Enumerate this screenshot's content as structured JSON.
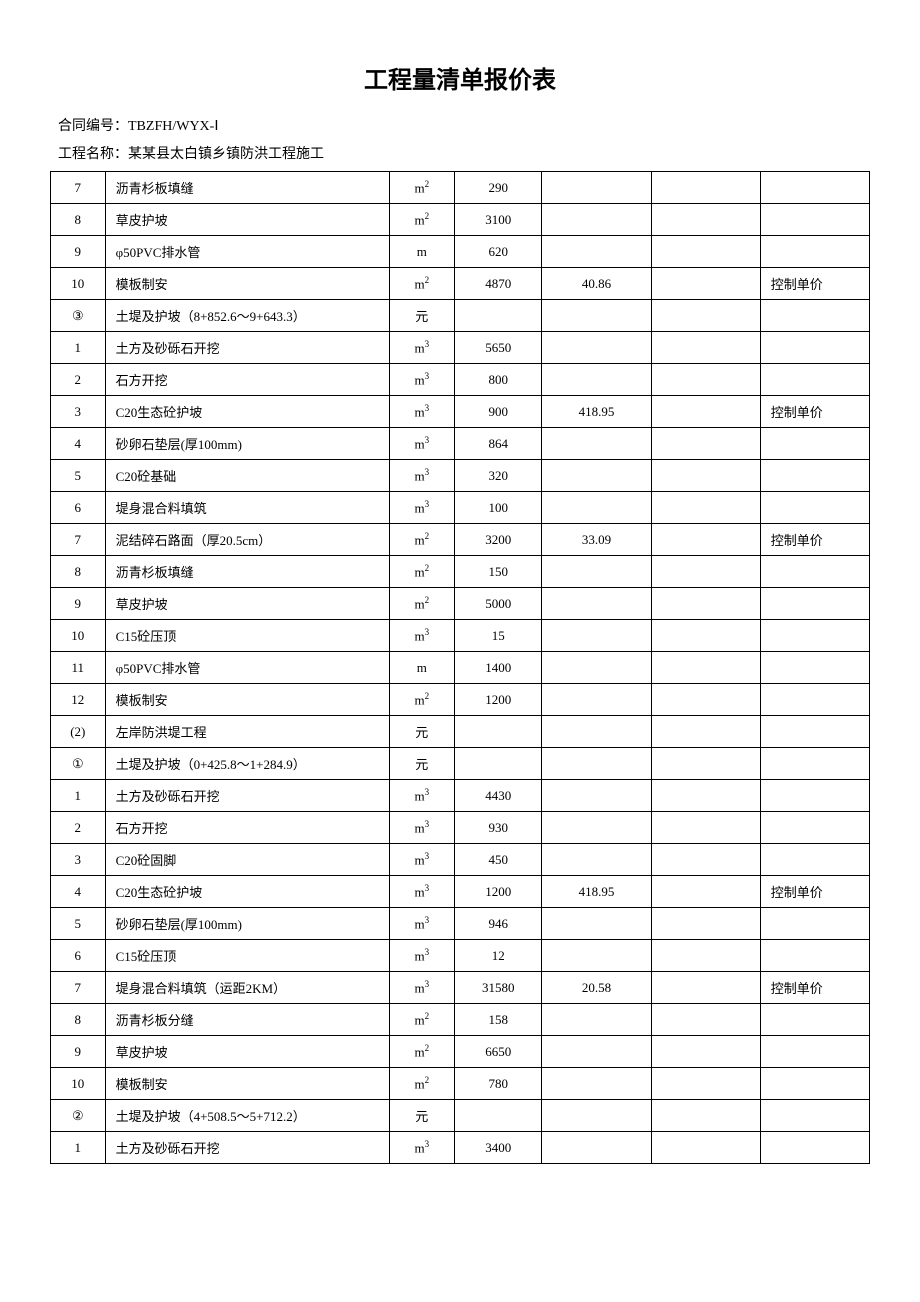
{
  "title": "工程量清单报价表",
  "contract_label": "合同编号：",
  "contract_no": "TBZFH/WYX-Ⅰ",
  "project_label": "工程名称：",
  "project_name": "某某县太白镇乡镇防洪工程施工",
  "note_text": "控制单价",
  "units": {
    "m2": "m²",
    "m3": "m³",
    "m": "m",
    "yuan": "元"
  },
  "rows": [
    {
      "idx": "7",
      "name": "沥青杉板填缝",
      "unit": "m2",
      "qty": "290",
      "price": "",
      "note": ""
    },
    {
      "idx": "8",
      "name": "草皮护坡",
      "unit": "m2",
      "qty": "3100",
      "price": "",
      "note": ""
    },
    {
      "idx": "9",
      "name": "φ50PVC排水管",
      "unit": "m",
      "qty": "620",
      "price": "",
      "note": ""
    },
    {
      "idx": "10",
      "name": "模板制安",
      "unit": "m2",
      "qty": "4870",
      "price": "40.86",
      "note": "控制单价"
    },
    {
      "idx": "③",
      "name": "土堤及护坡（8+852.6～9+643.3）",
      "unit": "yuan",
      "qty": "",
      "price": "",
      "note": ""
    },
    {
      "idx": "1",
      "name": "土方及砂砾石开挖",
      "unit": "m3",
      "qty": "5650",
      "price": "",
      "note": ""
    },
    {
      "idx": "2",
      "name": "石方开挖",
      "unit": "m3",
      "qty": "800",
      "price": "",
      "note": ""
    },
    {
      "idx": "3",
      "name": "C20生态砼护坡",
      "unit": "m3",
      "qty": "900",
      "price": "418.95",
      "note": "控制单价"
    },
    {
      "idx": "4",
      "name": "砂卵石垫层(厚100mm)",
      "unit": "m3",
      "qty": "864",
      "price": "",
      "note": ""
    },
    {
      "idx": "5",
      "name": "C20砼基础",
      "unit": "m3",
      "qty": "320",
      "price": "",
      "note": ""
    },
    {
      "idx": "6",
      "name": "堤身混合料填筑",
      "unit": "m3",
      "qty": "100",
      "price": "",
      "note": ""
    },
    {
      "idx": "7",
      "name": "泥结碎石路面（厚20.5cm）",
      "unit": "m2",
      "qty": "3200",
      "price": "33.09",
      "note": "控制单价"
    },
    {
      "idx": "8",
      "name": "沥青杉板填缝",
      "unit": "m2",
      "qty": "150",
      "price": "",
      "note": ""
    },
    {
      "idx": "9",
      "name": "草皮护坡",
      "unit": "m2",
      "qty": "5000",
      "price": "",
      "note": ""
    },
    {
      "idx": "10",
      "name": "C15砼压顶",
      "unit": "m3",
      "qty": "15",
      "price": "",
      "note": ""
    },
    {
      "idx": "11",
      "name": "φ50PVC排水管",
      "unit": "m",
      "qty": "1400",
      "price": "",
      "note": ""
    },
    {
      "idx": "12",
      "name": "模板制安",
      "unit": "m2",
      "qty": "1200",
      "price": "",
      "note": ""
    },
    {
      "idx": "(2)",
      "name": "左岸防洪堤工程",
      "unit": "yuan",
      "qty": "",
      "price": "",
      "note": ""
    },
    {
      "idx": "①",
      "name": "土堤及护坡（0+425.8～1+284.9）",
      "unit": "yuan",
      "qty": "",
      "price": "",
      "note": ""
    },
    {
      "idx": "1",
      "name": "土方及砂砾石开挖",
      "unit": "m3",
      "qty": "4430",
      "price": "",
      "note": ""
    },
    {
      "idx": "2",
      "name": "石方开挖",
      "unit": "m3",
      "qty": "930",
      "price": "",
      "note": ""
    },
    {
      "idx": "3",
      "name": "C20砼固脚",
      "unit": "m3",
      "qty": "450",
      "price": "",
      "note": ""
    },
    {
      "idx": "4",
      "name": "C20生态砼护坡",
      "unit": "m3",
      "qty": "1200",
      "price": "418.95",
      "note": "控制单价"
    },
    {
      "idx": "5",
      "name": "砂卵石垫层(厚100mm)",
      "unit": "m3",
      "qty": "946",
      "price": "",
      "note": ""
    },
    {
      "idx": "6",
      "name": "C15砼压顶",
      "unit": "m3",
      "qty": "12",
      "price": "",
      "note": ""
    },
    {
      "idx": "7",
      "name": "堤身混合料填筑（运距2KM）",
      "unit": "m3",
      "qty": "31580",
      "price": "20.58",
      "note": "控制单价"
    },
    {
      "idx": "8",
      "name": "沥青杉板分缝",
      "unit": "m2",
      "qty": "158",
      "price": "",
      "note": ""
    },
    {
      "idx": "9",
      "name": "草皮护坡",
      "unit": "m2",
      "qty": "6650",
      "price": "",
      "note": ""
    },
    {
      "idx": "10",
      "name": "模板制安",
      "unit": "m2",
      "qty": "780",
      "price": "",
      "note": ""
    },
    {
      "idx": "②",
      "name": "土堤及护坡（4+508.5～5+712.2）",
      "unit": "yuan",
      "qty": "",
      "price": "",
      "note": ""
    },
    {
      "idx": "1",
      "name": "土方及砂砾石开挖",
      "unit": "m3",
      "qty": "3400",
      "price": "",
      "note": ""
    }
  ]
}
